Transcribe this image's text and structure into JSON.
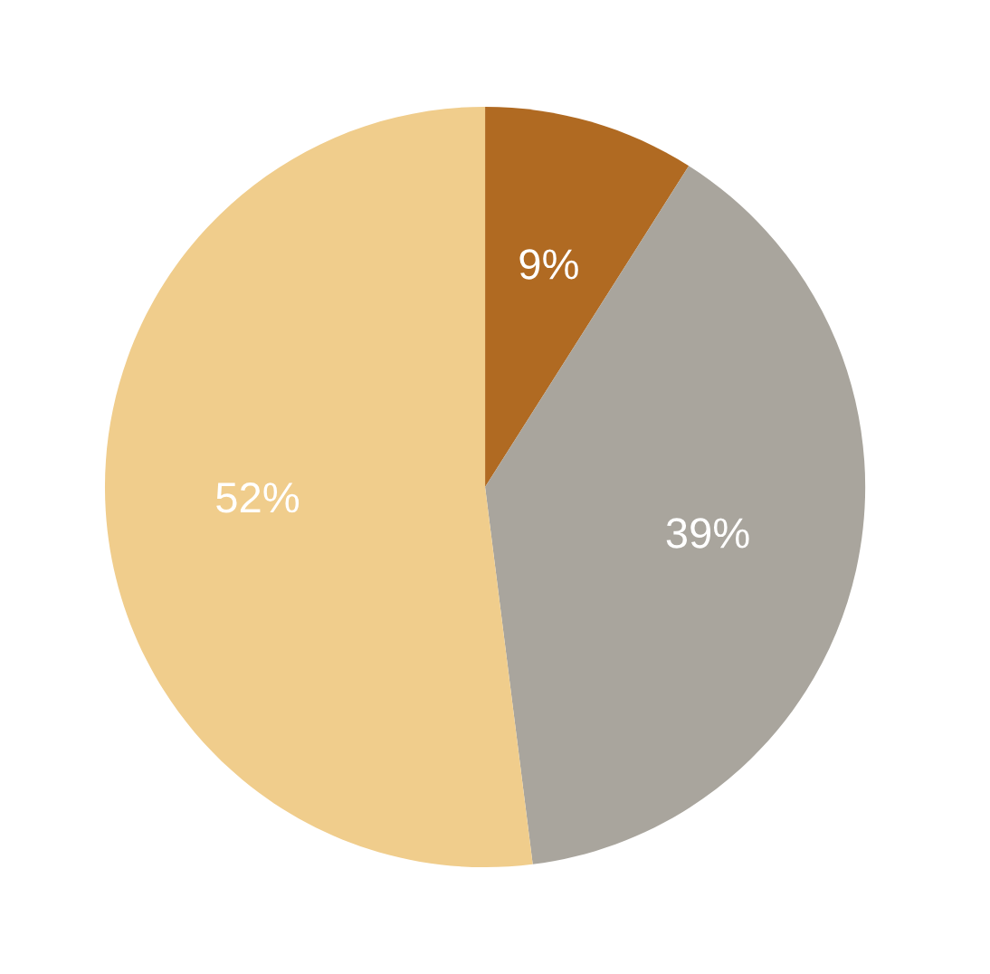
{
  "chart_data": {
    "type": "pie",
    "categories": [
      null,
      null,
      null
    ],
    "values": [
      9,
      39,
      52
    ],
    "colors": [
      "#b06a22",
      "#a9a59d",
      "#f0cd8c"
    ],
    "value_labels": [
      "9%",
      "39%",
      "52%"
    ]
  }
}
